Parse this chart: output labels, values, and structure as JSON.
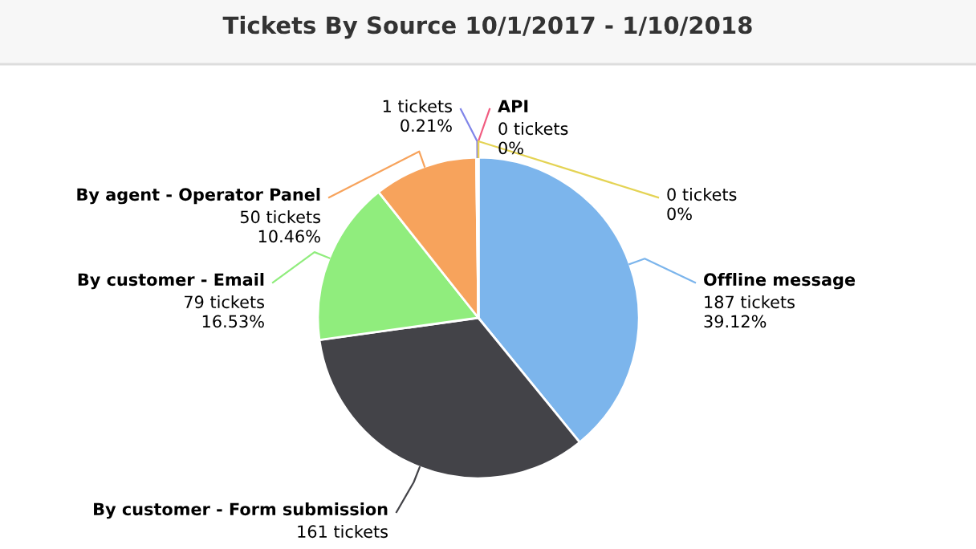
{
  "chart_data": {
    "type": "pie",
    "title": "Tickets By Source 10/1/2017 - 1/10/2018",
    "categories": [
      "Offline message",
      "By customer - Form submission",
      "By customer - Email",
      "By agent - Operator Panel",
      null,
      "API",
      null
    ],
    "values": [
      187,
      161,
      79,
      50,
      1,
      0,
      0
    ],
    "colors": [
      "#7cb5ec",
      "#434348",
      "#90ed7d",
      "#f7a35c",
      "#8085e9",
      "#f15c80",
      "#e4d354"
    ],
    "value_labels": [
      "187 tickets\n39.12%",
      "161 tickets",
      "79 tickets\n16.53%",
      "50 tickets\n10.46%",
      "1 tickets\n0.21%",
      "0 tickets\n0%",
      "0 tickets\n0%"
    ]
  }
}
